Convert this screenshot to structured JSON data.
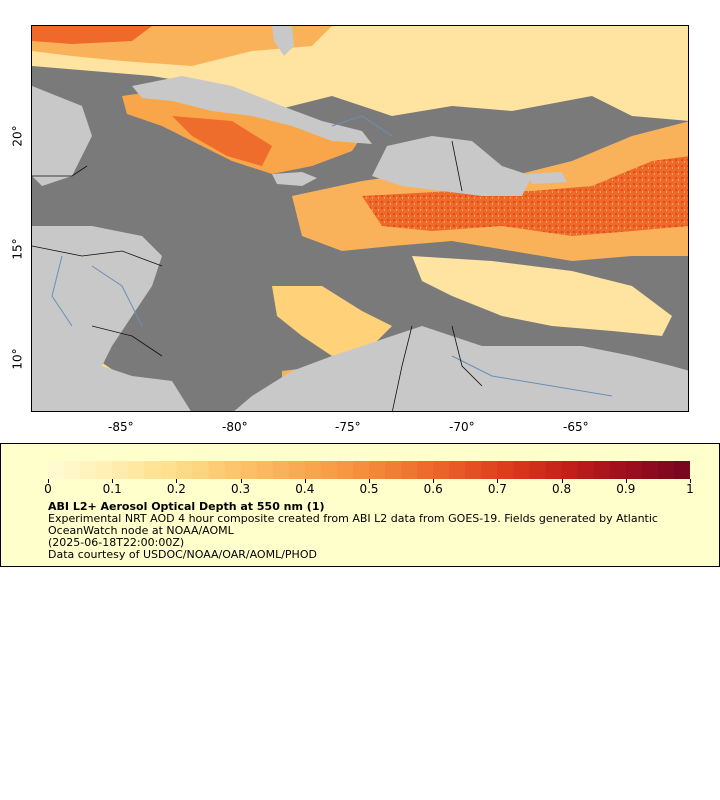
{
  "map": {
    "lon_ticks": [
      "-85°",
      "-80°",
      "-75°",
      "-70°",
      "-65°"
    ],
    "lat_ticks": [
      "20°",
      "15°",
      "10°"
    ],
    "colors": {
      "ocean": "#7a7a7a",
      "land": "#c8c8c8",
      "rivers": "#6a8fb8",
      "borders": "#111111",
      "aod_low": "#ffe9a8",
      "aod_mid": "#f8a040",
      "aod_high": "#e0401c"
    }
  },
  "legend": {
    "ticks": [
      "0",
      "0.1",
      "0.2",
      "0.3",
      "0.4",
      "0.5",
      "0.6",
      "0.7",
      "0.8",
      "0.9",
      "1"
    ],
    "title": "ABI L2+ Aerosol Optical Depth at 550 nm (1)",
    "line1": "Experimental NRT AOD 4 hour composite created from ABI L2 data from GOES-19. Fields generated by Atlantic OceanWatch node at NOAA/AOML",
    "line2": "(2025-06-18T22:00:00Z)",
    "line3": "Data courtesy of USDOC/NOAA/OAR/AOML/PHOD"
  }
}
